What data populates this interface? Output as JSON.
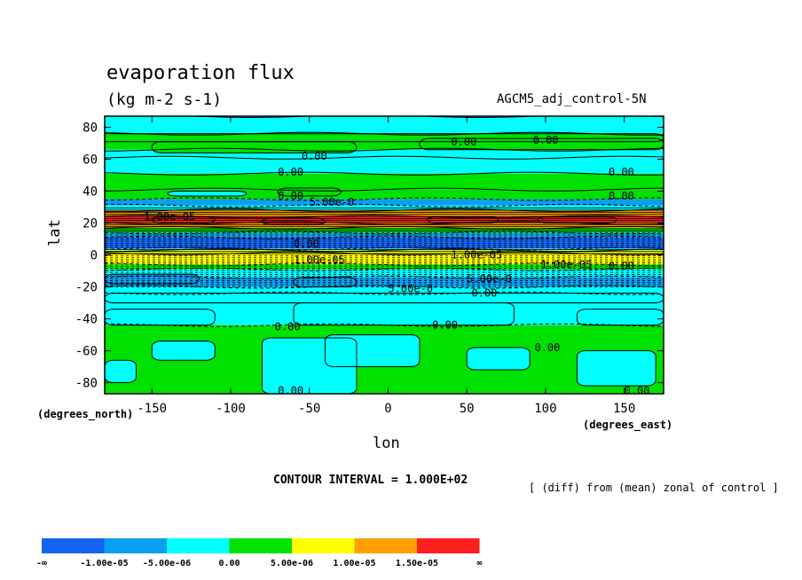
{
  "chart_data": {
    "type": "heatmap",
    "title": "evaporation flux",
    "units": "(kg m-2 s-1)",
    "run_label": "AGCM5_adj_control-5N",
    "xlabel": "lon",
    "ylabel": "lat",
    "x_units_label": "(degrees_east)",
    "y_units_label": "(degrees_north)",
    "x_ticks": [
      -150,
      -100,
      -50,
      0,
      50,
      100,
      150
    ],
    "y_ticks": [
      80,
      60,
      40,
      20,
      0,
      -20,
      -40,
      -60,
      -80
    ],
    "xlim": [
      -180,
      175
    ],
    "ylim": [
      -87,
      87
    ],
    "contour_interval_text": "CONTOUR INTERVAL = 1.000E+02",
    "note": "[ (diff) from (mean) zonal of control ]",
    "colorbar": {
      "colors": [
        "#1464f0",
        "#0aa0f0",
        "#00ffff",
        "#00e100",
        "#ffff00",
        "#ffa000",
        "#ff1e1e"
      ],
      "labels": [
        "-∞",
        "-1.00e-05",
        "-5.00e-06",
        "0.00",
        "5.00e-06",
        "1.00e-05",
        "1.50e-05",
        "∞"
      ]
    },
    "lat_bands": [
      {
        "lat": [
          76,
          87
        ],
        "level": 2
      },
      {
        "lat": [
          66,
          76
        ],
        "level": 3
      },
      {
        "lat": [
          61,
          66
        ],
        "level": 2
      },
      {
        "lat": [
          51,
          61
        ],
        "level": 2
      },
      {
        "lat": [
          41,
          51
        ],
        "level": 3
      },
      {
        "lat": [
          35,
          41
        ],
        "level": 3
      },
      {
        "lat": [
          31,
          35
        ],
        "level": 1
      },
      {
        "lat": [
          28,
          31
        ],
        "level": 2
      },
      {
        "lat": [
          24,
          28
        ],
        "level": 5
      },
      {
        "lat": [
          20,
          24
        ],
        "level": 6
      },
      {
        "lat": [
          17,
          20
        ],
        "level": 5
      },
      {
        "lat": [
          14,
          17
        ],
        "level": 3
      },
      {
        "lat": [
          11,
          14
        ],
        "level": 1
      },
      {
        "lat": [
          4,
          11
        ],
        "level": 0
      },
      {
        "lat": [
          1,
          4
        ],
        "level": 2
      },
      {
        "lat": [
          -3,
          1
        ],
        "level": 5
      },
      {
        "lat": [
          -6,
          3
        ],
        "level": 4
      },
      {
        "lat": [
          -9,
          -6
        ],
        "level": 3
      },
      {
        "lat": [
          -14,
          -9
        ],
        "level": 2
      },
      {
        "lat": [
          -20,
          -14
        ],
        "level": 1
      },
      {
        "lat": [
          -24,
          -20
        ],
        "level": 2
      },
      {
        "lat": [
          -44,
          -24
        ],
        "level": 2
      },
      {
        "lat": [
          -87,
          -44
        ],
        "level": 3
      }
    ],
    "patches": [
      {
        "lon": [
          -185,
          175
        ],
        "lat": [
          71,
          76
        ],
        "level": 3
      },
      {
        "lon": [
          -150,
          -20
        ],
        "lat": [
          64,
          71
        ],
        "level": 3
      },
      {
        "lon": [
          20,
          175
        ],
        "lat": [
          66,
          73
        ],
        "level": 3
      },
      {
        "lon": [
          -140,
          -90
        ],
        "lat": [
          37,
          40
        ],
        "level": 2
      },
      {
        "lon": [
          -70,
          -30
        ],
        "lat": [
          37,
          42
        ],
        "level": 3
      },
      {
        "lon": [
          -150,
          -110
        ],
        "lat": [
          20,
          24
        ],
        "level": 6
      },
      {
        "lon": [
          -80,
          -40
        ],
        "lat": [
          19,
          23
        ],
        "level": 6
      },
      {
        "lon": [
          25,
          70
        ],
        "lat": [
          20,
          24
        ],
        "level": 6
      },
      {
        "lon": [
          95,
          145
        ],
        "lat": [
          20,
          24
        ],
        "level": 6
      },
      {
        "lon": [
          -60,
          -20
        ],
        "lat": [
          -20,
          -14
        ],
        "level": 1
      },
      {
        "lon": [
          -180,
          -120
        ],
        "lat": [
          -18,
          -12
        ],
        "level": 1
      },
      {
        "lon": [
          -180,
          175
        ],
        "lat": [
          -30,
          -24
        ],
        "level": 2
      },
      {
        "lon": [
          -60,
          80
        ],
        "lat": [
          -44,
          -30
        ],
        "level": 2
      },
      {
        "lon": [
          -180,
          -110
        ],
        "lat": [
          -44,
          -34
        ],
        "level": 2
      },
      {
        "lon": [
          120,
          175
        ],
        "lat": [
          -44,
          -34
        ],
        "level": 2
      },
      {
        "lon": [
          -150,
          -110
        ],
        "lat": [
          -66,
          -54
        ],
        "level": 2
      },
      {
        "lon": [
          -80,
          -20
        ],
        "lat": [
          -87,
          -52
        ],
        "level": 2
      },
      {
        "lon": [
          -40,
          20
        ],
        "lat": [
          -70,
          -50
        ],
        "level": 2
      },
      {
        "lon": [
          50,
          90
        ],
        "lat": [
          -72,
          -58
        ],
        "level": 2
      },
      {
        "lon": [
          120,
          170
        ],
        "lat": [
          -82,
          -60
        ],
        "level": 2
      },
      {
        "lon": [
          -180,
          -160
        ],
        "lat": [
          -80,
          -66
        ],
        "level": 2
      }
    ],
    "contour_labels": [
      {
        "text": "0.00",
        "lon": 40,
        "lat": 71
      },
      {
        "text": "0.00",
        "lon": 92,
        "lat": 72
      },
      {
        "text": "0.00",
        "lon": -55,
        "lat": 62
      },
      {
        "text": "0.00",
        "lon": -70,
        "lat": 52
      },
      {
        "text": "0.00",
        "lon": 140,
        "lat": 52
      },
      {
        "text": "0.00",
        "lon": -70,
        "lat": 37
      },
      {
        "text": "0.00",
        "lon": 140,
        "lat": 37
      },
      {
        "text": "0.00",
        "lon": -60,
        "lat": 7
      },
      {
        "text": "0.00",
        "lon": 140,
        "lat": -7
      },
      {
        "text": "0.00",
        "lon": 53,
        "lat": -24
      },
      {
        "text": "0.00",
        "lon": -72,
        "lat": -45
      },
      {
        "text": "0.00",
        "lon": 28,
        "lat": -44
      },
      {
        "text": "0.00",
        "lon": 93,
        "lat": -58
      },
      {
        "text": "0.00",
        "lon": -70,
        "lat": -85
      },
      {
        "text": "0.00",
        "lon": 150,
        "lat": -85
      },
      {
        "text": "5.00e-0",
        "lon": -50,
        "lat": 33
      },
      {
        "text": "5.00e-0",
        "lon": 0,
        "lat": -21
      },
      {
        "text": "5.00e-0",
        "lon": 50,
        "lat": -15
      },
      {
        "text": "1.00e-05",
        "lon": -155,
        "lat": 24
      },
      {
        "text": "1.00e-05",
        "lon": 40,
        "lat": 0
      },
      {
        "text": "1.00e-05",
        "lon": 97,
        "lat": -6
      },
      {
        "text": "1.00e-05",
        "lon": -60,
        "lat": -3
      }
    ]
  }
}
